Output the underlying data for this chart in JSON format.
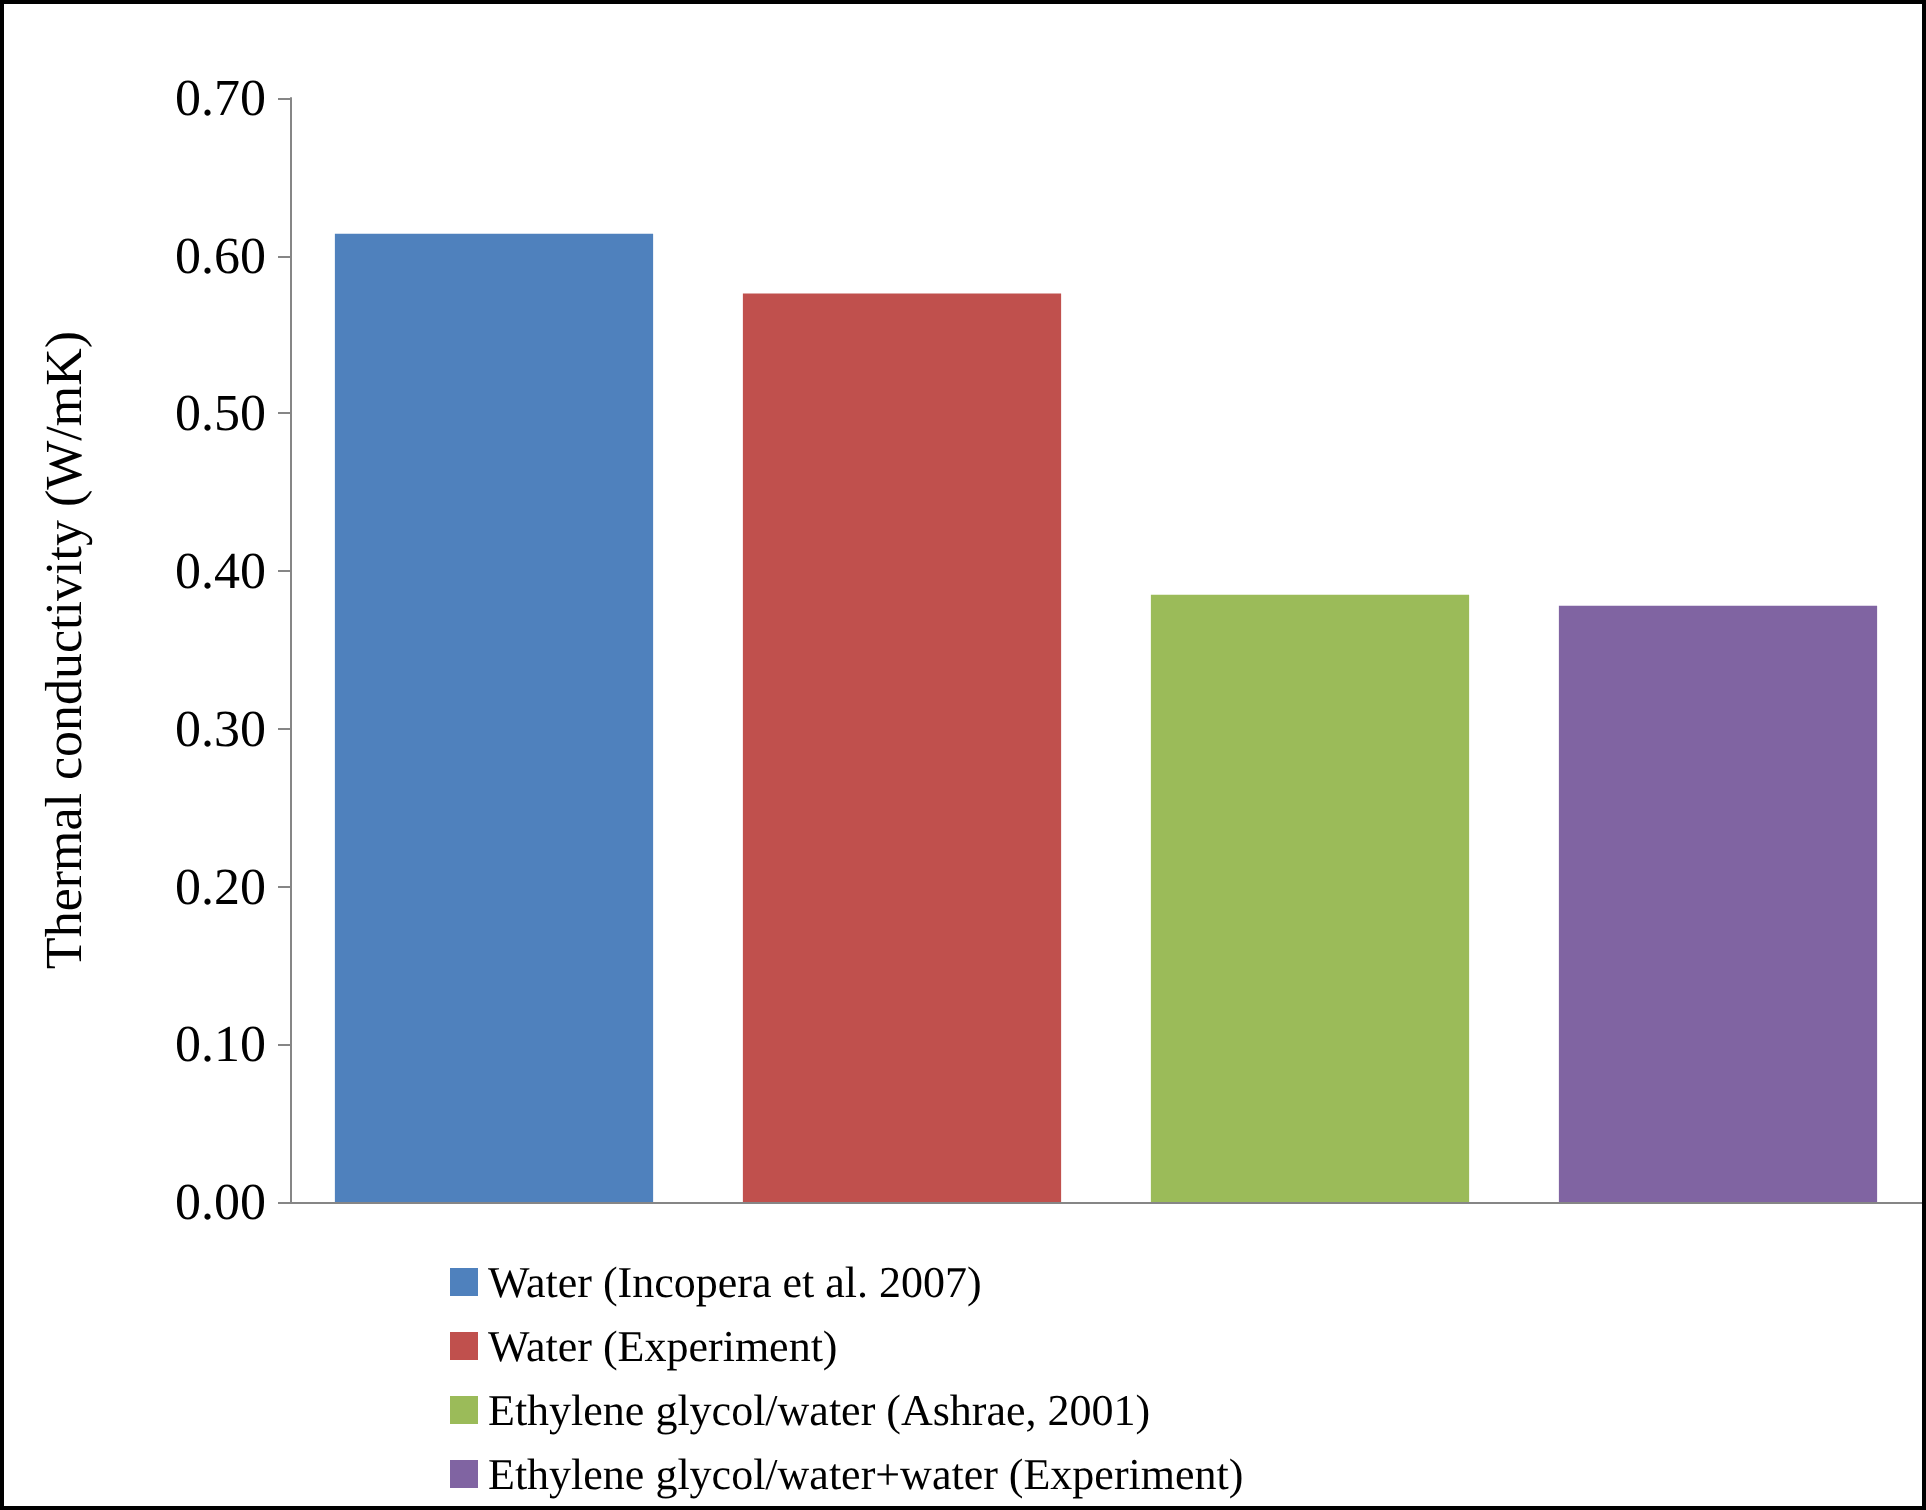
{
  "chart_data": {
    "type": "bar",
    "ylabel": "Thermal conductivity (W/mK)",
    "categories": [
      null,
      null,
      null,
      null
    ],
    "stacked": true,
    "series": [
      {
        "name": "Water (Incopera et al. 2007)",
        "color": "#4f81bd",
        "values": [
          0.614,
          null,
          null,
          null
        ]
      },
      {
        "name": "Water (Experiment)",
        "color": "#c0504d",
        "values": [
          null,
          0.576,
          null,
          null
        ]
      },
      {
        "name": "Ethylene glycol/water (Ashrae, 2001)",
        "color": "#9bbb59",
        "values": [
          null,
          null,
          0.385,
          null
        ]
      },
      {
        "name": "Ethylene glycol/water+water (Experiment)",
        "color": "#8064a2",
        "values": [
          null,
          null,
          null,
          0.378
        ]
      }
    ],
    "ylim": [
      0,
      0.7
    ],
    "yticks": [
      {
        "value": 0,
        "label": "0.00"
      },
      {
        "value": 0.1,
        "label": "0.10"
      },
      {
        "value": 0.2,
        "label": "0.20"
      },
      {
        "value": 0.3,
        "label": "0.30"
      },
      {
        "value": 0.4,
        "label": "0.40"
      },
      {
        "value": 0.5,
        "label": "0.50"
      },
      {
        "value": 0.6,
        "label": "0.60"
      },
      {
        "value": 0.7,
        "label": "0.70"
      }
    ],
    "grid": false,
    "legend": "bottom"
  }
}
